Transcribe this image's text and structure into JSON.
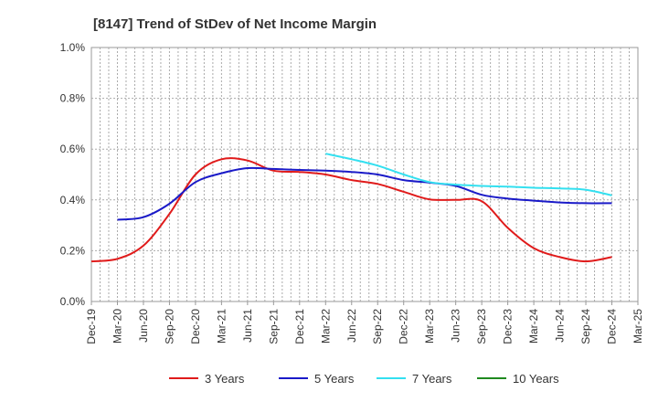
{
  "chart_data": {
    "type": "line",
    "title": "[8147]  Trend of StDev of Net Income Margin",
    "xlabel": "",
    "ylabel": "",
    "x": [
      "Dec-19",
      "Mar-20",
      "Jun-20",
      "Sep-20",
      "Dec-20",
      "Mar-21",
      "Jun-21",
      "Sep-21",
      "Dec-21",
      "Mar-22",
      "Jun-22",
      "Sep-22",
      "Dec-22",
      "Mar-23",
      "Jun-23",
      "Sep-23",
      "Dec-23",
      "Mar-24",
      "Jun-24",
      "Sep-24",
      "Dec-24",
      "Mar-25"
    ],
    "yticks": [
      "0.0%",
      "0.2%",
      "0.4%",
      "0.6%",
      "0.8%",
      "1.0%"
    ],
    "ylim": [
      0,
      1.0
    ],
    "y_unit": "%",
    "grid": true,
    "legend_position": "bottom",
    "series": [
      {
        "name": "3 Years",
        "color": "#e01b1b",
        "values": [
          0.158,
          0.168,
          0.22,
          0.345,
          0.5,
          0.56,
          0.555,
          0.515,
          0.51,
          0.5,
          0.478,
          0.463,
          0.432,
          0.402,
          0.4,
          0.395,
          0.29,
          0.21,
          0.175,
          0.158,
          0.175,
          null
        ]
      },
      {
        "name": "5 Years",
        "color": "#1a1ac8",
        "values": [
          null,
          0.322,
          0.332,
          0.385,
          0.47,
          0.505,
          0.525,
          0.522,
          0.518,
          0.515,
          0.51,
          0.5,
          0.478,
          0.468,
          0.455,
          0.42,
          0.405,
          0.397,
          0.39,
          0.387,
          0.387,
          null
        ]
      },
      {
        "name": "7 Years",
        "color": "#33e0f0",
        "values": [
          null,
          null,
          null,
          null,
          null,
          null,
          null,
          null,
          null,
          0.582,
          0.56,
          0.535,
          0.5,
          0.47,
          0.46,
          0.455,
          0.452,
          0.448,
          0.445,
          0.44,
          0.418,
          null
        ]
      },
      {
        "name": "10 Years",
        "color": "#1f8a1f",
        "values": [
          null,
          null,
          null,
          null,
          null,
          null,
          null,
          null,
          null,
          null,
          null,
          null,
          null,
          null,
          null,
          null,
          null,
          null,
          null,
          null,
          null,
          null
        ]
      }
    ]
  }
}
